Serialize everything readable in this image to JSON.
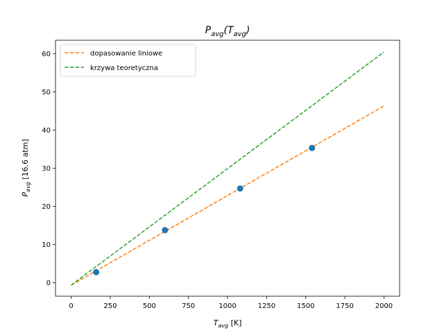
{
  "chart_data": {
    "type": "scatter",
    "title": {
      "base": "P",
      "sub": "avg",
      "open": "(",
      "arg_base": "T",
      "arg_sub": "avg",
      "close": ")"
    },
    "xlabel": {
      "base": "T",
      "sub": "avg",
      "rest": " [K]"
    },
    "ylabel": {
      "base": "P",
      "sub": "avg",
      "rest": " [16.6 atm]"
    },
    "xlim": [
      -100,
      2100
    ],
    "ylim": [
      -3.5,
      63.5
    ],
    "x_ticks": [
      0,
      250,
      500,
      750,
      1000,
      1250,
      1500,
      1750,
      2000
    ],
    "y_ticks": [
      0,
      10,
      20,
      30,
      40,
      50,
      60
    ],
    "grid": false,
    "legend_position": "top-left",
    "points": {
      "x": [
        160,
        600,
        1080,
        1540
      ],
      "y": [
        2.8,
        13.8,
        24.7,
        35.3
      ],
      "color": "#1f77b4"
    },
    "series": [
      {
        "name": "dopasowanie liniowe",
        "style": "dashed",
        "color": "#ff7f0e",
        "x": [
          0,
          2000
        ],
        "y": [
          -0.6,
          46.3
        ]
      },
      {
        "name": "krzywa teoretyczna",
        "style": "dashed",
        "color": "#2ca02c",
        "x": [
          0,
          2000
        ],
        "y": [
          -0.6,
          60.4
        ]
      }
    ]
  }
}
